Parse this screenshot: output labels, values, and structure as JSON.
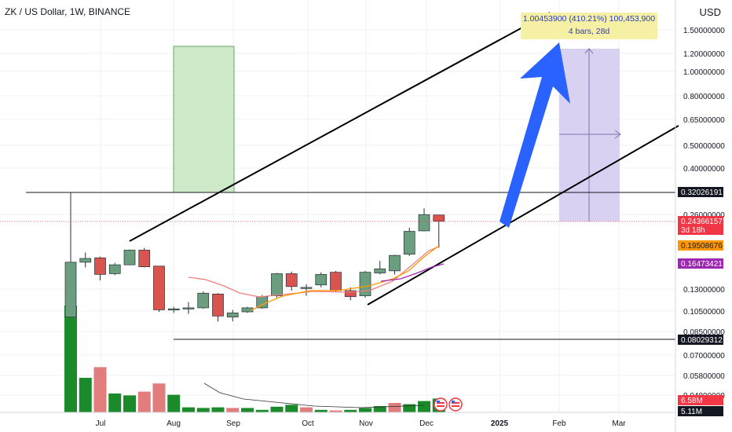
{
  "header": {
    "symbol_title": "ZK / US Dollar, 1W, BINANCE",
    "currency": "USD"
  },
  "measure": {
    "line1": "1.00453900 (410.21%) 100,453,900",
    "line2": "4 bars, 28d"
  },
  "price_axis": {
    "ticks": [
      "1.50000000",
      "1.20000000",
      "1.00000000",
      "0.80000000",
      "0.65000000",
      "0.50000000",
      "0.40000000",
      "0.26000000",
      "0.13000000",
      "0.10500000",
      "0.08500000",
      "0.07000000",
      "0.05800000",
      "0.04800000"
    ]
  },
  "time_axis": {
    "labels": [
      "Jul",
      "Aug",
      "Sep",
      "Oct",
      "Nov",
      "Dec",
      "2025",
      "Feb",
      "Mar"
    ]
  },
  "price_tags": [
    {
      "label": "0.32026191",
      "bg": "#131722",
      "fg": "#ffffff",
      "sub": ""
    },
    {
      "label": "0.24366157",
      "bg": "#f23645",
      "fg": "#ffffff",
      "sub": "3d 18h"
    },
    {
      "label": "0.19508676",
      "bg": "#ff9800",
      "fg": "#131722",
      "sub": ""
    },
    {
      "label": "0.16473421",
      "bg": "#9c27b0",
      "fg": "#ffffff",
      "sub": ""
    },
    {
      "label": "0.08029312",
      "bg": "#131722",
      "fg": "#ffffff",
      "sub": ""
    },
    {
      "label": "6.58M",
      "bg": "#f23645",
      "fg": "#ffffff",
      "sub": ""
    },
    {
      "label": "5.11M",
      "bg": "#131722",
      "fg": "#ffffff",
      "sub": ""
    }
  ],
  "colors": {
    "up": "#6a9e7f",
    "down": "#d9534f",
    "vol_up": "#1b8a2a",
    "vol_down": "#e27d7d",
    "arrow": "#2962ff",
    "green_zone": "#cde9c8",
    "purple_zone": "#d8d1f2",
    "ema_fast": "#ff9800",
    "ema_slow": "#f08080",
    "ema_purple": "#9c27b0"
  },
  "chart_data": {
    "type": "candlestick",
    "symbol": "ZK / US Dollar",
    "interval": "1W",
    "exchange": "BINANCE",
    "candles": [
      {
        "o": 0.099,
        "h": 0.32,
        "l": 0.099,
        "c": 0.166
      },
      {
        "o": 0.166,
        "h": 0.182,
        "l": 0.158,
        "c": 0.172
      },
      {
        "o": 0.173,
        "h": 0.175,
        "l": 0.14,
        "c": 0.148
      },
      {
        "o": 0.149,
        "h": 0.165,
        "l": 0.147,
        "c": 0.162
      },
      {
        "o": 0.162,
        "h": 0.187,
        "l": 0.162,
        "c": 0.186
      },
      {
        "o": 0.186,
        "h": 0.19,
        "l": 0.158,
        "c": 0.159
      },
      {
        "o": 0.16,
        "h": 0.16,
        "l": 0.104,
        "c": 0.106
      },
      {
        "o": 0.106,
        "h": 0.109,
        "l": 0.103,
        "c": 0.107
      },
      {
        "o": 0.107,
        "h": 0.114,
        "l": 0.102,
        "c": 0.108
      },
      {
        "o": 0.108,
        "h": 0.126,
        "l": 0.107,
        "c": 0.124
      },
      {
        "o": 0.123,
        "h": 0.124,
        "l": 0.095,
        "c": 0.1
      },
      {
        "o": 0.099,
        "h": 0.106,
        "l": 0.095,
        "c": 0.103
      },
      {
        "o": 0.104,
        "h": 0.109,
        "l": 0.103,
        "c": 0.108
      },
      {
        "o": 0.108,
        "h": 0.122,
        "l": 0.107,
        "c": 0.12
      },
      {
        "o": 0.121,
        "h": 0.15,
        "l": 0.119,
        "c": 0.149
      },
      {
        "o": 0.149,
        "h": 0.152,
        "l": 0.127,
        "c": 0.132
      },
      {
        "o": 0.131,
        "h": 0.135,
        "l": 0.121,
        "c": 0.131
      },
      {
        "o": 0.134,
        "h": 0.151,
        "l": 0.131,
        "c": 0.148
      },
      {
        "o": 0.151,
        "h": 0.153,
        "l": 0.125,
        "c": 0.127
      },
      {
        "o": 0.127,
        "h": 0.131,
        "l": 0.116,
        "c": 0.12
      },
      {
        "o": 0.121,
        "h": 0.153,
        "l": 0.119,
        "c": 0.151
      },
      {
        "o": 0.15,
        "h": 0.168,
        "l": 0.148,
        "c": 0.156
      },
      {
        "o": 0.153,
        "h": 0.178,
        "l": 0.148,
        "c": 0.177
      },
      {
        "o": 0.179,
        "h": 0.23,
        "l": 0.176,
        "c": 0.222
      },
      {
        "o": 0.223,
        "h": 0.276,
        "l": 0.222,
        "c": 0.26
      },
      {
        "o": 0.259,
        "h": 0.259,
        "l": 0.19,
        "c": 0.244
      }
    ],
    "volume": [
      {
        "v": 17.0,
        "up": true
      },
      {
        "v": 5.5,
        "up": true
      },
      {
        "v": 7.2,
        "up": false
      },
      {
        "v": 3.0,
        "up": true
      },
      {
        "v": 2.7,
        "up": true
      },
      {
        "v": 3.3,
        "up": false
      },
      {
        "v": 4.6,
        "up": false
      },
      {
        "v": 2.8,
        "up": true
      },
      {
        "v": 0.8,
        "up": true
      },
      {
        "v": 0.7,
        "up": true
      },
      {
        "v": 0.8,
        "up": true
      },
      {
        "v": 0.7,
        "up": false
      },
      {
        "v": 0.7,
        "up": true
      },
      {
        "v": 0.4,
        "up": true
      },
      {
        "v": 0.9,
        "up": true
      },
      {
        "v": 1.2,
        "up": true
      },
      {
        "v": 0.8,
        "up": false
      },
      {
        "v": 0.4,
        "up": true
      },
      {
        "v": 0.3,
        "up": false
      },
      {
        "v": 0.4,
        "up": true
      },
      {
        "v": 0.7,
        "up": true
      },
      {
        "v": 1.0,
        "up": true
      },
      {
        "v": 1.5,
        "up": false
      },
      {
        "v": 1.3,
        "up": true
      },
      {
        "v": 1.8,
        "up": true
      },
      {
        "v": 2.2,
        "up": true
      }
    ]
  }
}
